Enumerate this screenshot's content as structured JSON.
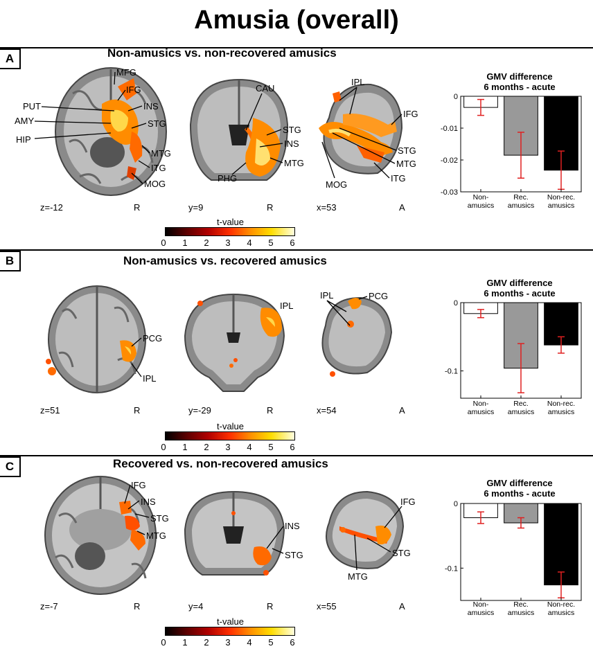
{
  "figure_title": "Amusia (overall)",
  "colorbar": {
    "title": "t-value",
    "ticks": [
      "0",
      "1",
      "2",
      "3",
      "4",
      "5",
      "6"
    ]
  },
  "panels": [
    {
      "letter": "A",
      "title": "Non-amusics vs. non-recovered amusics",
      "coords": [
        "z=-12",
        "y=9",
        "x=53"
      ],
      "orient": [
        "R",
        "R",
        "A"
      ],
      "axial_labels": [
        "MFG",
        "IFG",
        "PUT",
        "INS",
        "AMY",
        "STG",
        "HIP",
        "MTG",
        "ITG",
        "MOG"
      ],
      "coronal_labels": [
        "CAU",
        "STG",
        "INS",
        "MTG",
        "PHG"
      ],
      "sagittal_labels": [
        "IPL",
        "IFG",
        "STG",
        "MTG",
        "ITG",
        "MOG"
      ]
    },
    {
      "letter": "B",
      "title": "Non-amusics vs. recovered amusics",
      "coords": [
        "z=51",
        "y=-29",
        "x=54"
      ],
      "orient": [
        "R",
        "R",
        "A"
      ],
      "axial_labels": [
        "PCG",
        "IPL"
      ],
      "coronal_labels": [
        "IPL"
      ],
      "sagittal_labels": [
        "IPL",
        "PCG"
      ]
    },
    {
      "letter": "C",
      "title": "Recovered vs. non-recovered amusics",
      "coords": [
        "z=-7",
        "y=4",
        "x=55"
      ],
      "orient": [
        "R",
        "R",
        "A"
      ],
      "axial_labels": [
        "IFG",
        "INS",
        "STG",
        "MTG"
      ],
      "coronal_labels": [
        "INS",
        "STG"
      ],
      "sagittal_labels": [
        "IFG",
        "STG",
        "MTG"
      ]
    }
  ],
  "chart_data": [
    {
      "type": "bar",
      "title": "GMV difference",
      "subtitle": "6 months - acute",
      "categories": [
        "Non- amusics",
        "Rec. amusics",
        "Non-rec. amusics"
      ],
      "values": [
        -0.0035,
        -0.0185,
        -0.0232
      ],
      "error": [
        0.0025,
        0.0072,
        0.006
      ],
      "ylim": [
        -0.03,
        0
      ],
      "yticks": [
        0,
        -0.01,
        -0.02,
        -0.03
      ],
      "ytick_labels": [
        "0",
        "-0.01",
        "-0.02",
        "-0.03"
      ],
      "colors": [
        "#ffffff",
        "#999999",
        "#000000"
      ],
      "error_color": "#e02020"
    },
    {
      "type": "bar",
      "title": "GMV difference",
      "subtitle": "6 months - acute",
      "categories": [
        "Non- amusics",
        "Rec. amusics",
        "Non-rec. amusics"
      ],
      "values": [
        -0.016,
        -0.096,
        -0.062
      ],
      "error": [
        0.006,
        0.036,
        0.012
      ],
      "ylim": [
        -0.14,
        0
      ],
      "yticks": [
        0,
        -0.1
      ],
      "ytick_labels": [
        "0",
        "-0.1"
      ],
      "colors": [
        "#ffffff",
        "#999999",
        "#000000"
      ],
      "error_color": "#e02020"
    },
    {
      "type": "bar",
      "title": "GMV difference",
      "subtitle": "6 months - acute",
      "categories": [
        "Non- amusics",
        "Rec. amusics",
        "Non-rec. amusics"
      ],
      "values": [
        -0.022,
        -0.03,
        -0.126
      ],
      "error": [
        0.009,
        0.008,
        0.02
      ],
      "ylim": [
        -0.15,
        0
      ],
      "yticks": [
        0,
        -0.1
      ],
      "ytick_labels": [
        "0",
        "-0.1"
      ],
      "colors": [
        "#ffffff",
        "#999999",
        "#000000"
      ],
      "error_color": "#e02020"
    }
  ]
}
